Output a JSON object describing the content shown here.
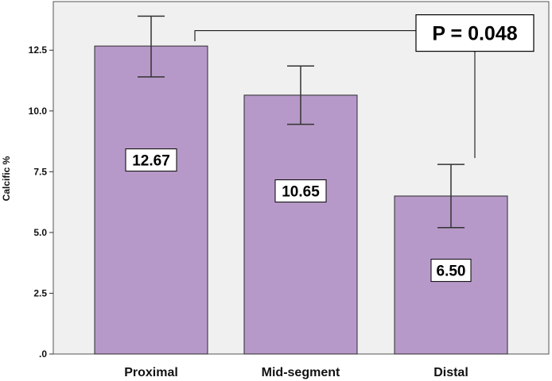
{
  "chart_data": {
    "type": "bar",
    "categories": [
      "Proximal",
      "Mid-segment",
      "Distal"
    ],
    "values": [
      12.67,
      10.65,
      6.5
    ],
    "value_labels": [
      "12.67",
      "10.65",
      "6.50"
    ],
    "error_low": [
      11.4,
      9.45,
      5.2
    ],
    "error_high": [
      13.9,
      11.85,
      7.8
    ],
    "title": "",
    "xlabel": "",
    "ylabel": "Calcific %",
    "ylim": [
      0,
      14.5
    ],
    "yticks": [
      0,
      2.5,
      5.0,
      7.5,
      10.0,
      12.5
    ],
    "ytick_labels": [
      ".0",
      "2.5",
      "5.0",
      "7.5",
      "10.0",
      "12.5"
    ],
    "annotation": {
      "text": "P = 0.048",
      "from_category": "Proximal",
      "to_category": "Distal",
      "bracket_y": 13.5
    },
    "grid": false,
    "colors": {
      "bar_fill": "#b799c9",
      "bar_stroke": "#2a2a2a",
      "plot_background": "#f0f0f0",
      "error_bar": "#333333"
    }
  }
}
